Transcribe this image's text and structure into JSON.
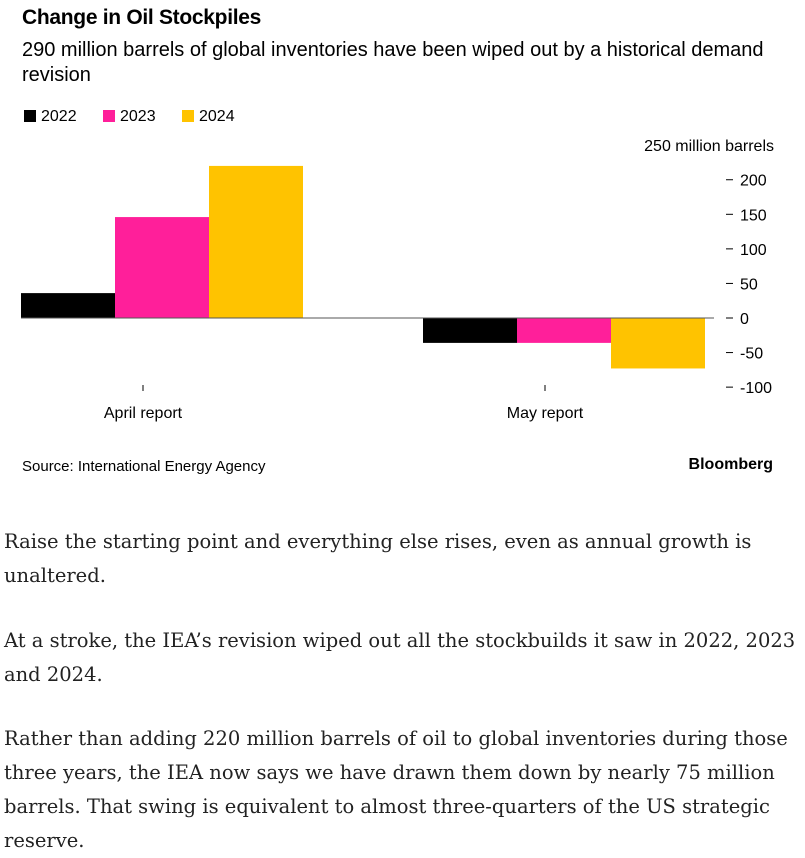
{
  "chart_data": {
    "type": "bar",
    "title": "Change in Oil Stockpiles",
    "subtitle": "290 million barrels of global inventories have been wiped out by a historical demand revision",
    "unit_label": "250 million barrels",
    "categories": [
      "April report",
      "May report"
    ],
    "series": [
      {
        "name": "2022",
        "color": "#000000",
        "values": [
          36,
          -36
        ]
      },
      {
        "name": "2023",
        "color": "#ff1f9a",
        "values": [
          146,
          -36
        ]
      },
      {
        "name": "2024",
        "color": "#ffc300",
        "values": [
          220,
          -73
        ]
      }
    ],
    "yticks": [
      200,
      150,
      100,
      50,
      0,
      -50,
      -100
    ],
    "ylim": [
      -100,
      250
    ],
    "source": "Source: International Energy Agency",
    "brand": "Bloomberg"
  },
  "article": {
    "paragraphs": [
      "Raise the starting point and everything else rises, even as annual growth is unaltered.",
      "At a stroke, the IEA’s revision wiped out all the stockbuilds it saw in 2022, 2023 and 2024.",
      "Rather than adding 220 million barrels of oil to global inventories during those three years, the IEA now says we have drawn them down by nearly 75 million barrels. That swing is equivalent to almost three-quarters of the US strategic reserve."
    ]
  }
}
